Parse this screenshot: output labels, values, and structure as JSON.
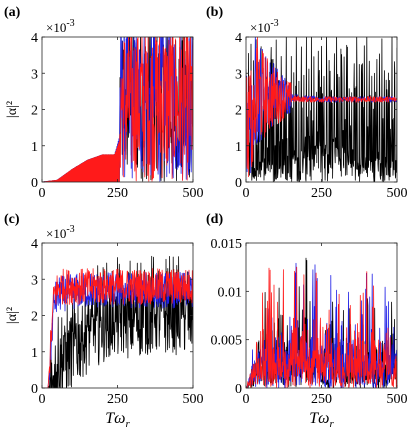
{
  "colors": {
    "black": "#000000",
    "blue": "#1f1fe6",
    "red": "#ff1a1a",
    "axis": "#262626"
  },
  "chart_data": [
    {
      "panel": "(a)",
      "type": "line",
      "xlim": [
        0,
        500
      ],
      "ylim": [
        0,
        4
      ],
      "exponent": "×10",
      "exponent_power": "-3",
      "xticks": [
        "0",
        "250",
        "500"
      ],
      "yticks": [
        "0",
        "1",
        "2",
        "3",
        "4"
      ],
      "ylabel": "|α|²",
      "xlabel": "",
      "series": [
        {
          "color": "black",
          "x": [
            0,
            50,
            100,
            150,
            200,
            240,
            255,
            265,
            280,
            300,
            350,
            400,
            450,
            500
          ],
          "y": [
            0.0,
            0.05,
            0.35,
            0.6,
            0.75,
            0.75,
            1.1,
            1.5,
            2.5,
            3.2,
            3.0,
            3.6,
            2.8,
            3.2
          ]
        },
        {
          "color": "blue",
          "x": [
            0,
            50,
            100,
            150,
            200,
            240,
            255,
            265,
            280,
            300,
            350,
            400,
            450,
            500
          ],
          "y": [
            0.0,
            0.05,
            0.35,
            0.6,
            0.75,
            0.75,
            1.2,
            1.8,
            3.4,
            3.6,
            3.2,
            3.8,
            3.0,
            3.4
          ]
        },
        {
          "color": "red",
          "x": [
            0,
            50,
            100,
            150,
            200,
            240,
            255,
            265,
            280,
            300,
            350,
            400,
            450,
            500
          ],
          "y": [
            0.0,
            0.05,
            0.35,
            0.6,
            0.75,
            0.75,
            1.1,
            1.6,
            3.0,
            3.4,
            3.0,
            3.5,
            2.8,
            3.2
          ]
        }
      ]
    },
    {
      "panel": "(b)",
      "type": "line",
      "xlim": [
        0,
        500
      ],
      "ylim": [
        0,
        4
      ],
      "exponent": "×10",
      "exponent_power": "-3",
      "xticks": [
        "0",
        "250",
        "500"
      ],
      "yticks": [
        "0",
        "1",
        "2",
        "3",
        "4"
      ],
      "ylabel": "",
      "xlabel": "",
      "series": [
        {
          "color": "black",
          "x": [
            0,
            25,
            50,
            100,
            150,
            200,
            250,
            280,
            300,
            350,
            400,
            450,
            500
          ],
          "y": [
            2.0,
            0.2,
            0.5,
            0.6,
            0.7,
            0.9,
            1.0,
            1.2,
            1.0,
            0.7,
            0.6,
            0.6,
            0.5
          ]
        },
        {
          "color": "blue",
          "x": [
            0,
            25,
            50,
            100,
            150,
            200,
            250,
            280,
            300,
            350,
            400,
            450,
            500
          ],
          "y": [
            2.6,
            2.5,
            2.5,
            2.45,
            2.35,
            2.3,
            2.28,
            2.28,
            2.28,
            2.28,
            2.28,
            2.28,
            2.28
          ]
        },
        {
          "color": "red",
          "x": [
            0,
            25,
            50,
            100,
            150,
            200,
            250,
            280,
            300,
            350,
            400,
            450,
            500
          ],
          "y": [
            2.5,
            2.5,
            2.4,
            2.35,
            2.3,
            2.28,
            2.28,
            2.28,
            2.28,
            2.28,
            2.28,
            2.28,
            2.28
          ]
        }
      ]
    },
    {
      "panel": "(c)",
      "type": "line",
      "xlim": [
        0,
        500
      ],
      "ylim": [
        0,
        4
      ],
      "exponent": "×10",
      "exponent_power": "-3",
      "xticks": [
        "0",
        "250",
        "500"
      ],
      "yticks": [
        "0",
        "1",
        "2",
        "3",
        "4"
      ],
      "ylabel": "|α|²",
      "xlabel": "Tω",
      "xlabel_sub": "r",
      "series": [
        {
          "color": "black",
          "x": [
            0,
            20,
            40,
            60,
            100,
            150,
            200,
            250,
            300,
            350,
            400,
            450,
            500
          ],
          "y": [
            0.0,
            0.0,
            0.3,
            0.6,
            1.0,
            1.4,
            1.7,
            1.8,
            1.8,
            1.9,
            1.9,
            1.9,
            1.9
          ]
        },
        {
          "color": "blue",
          "x": [
            0,
            20,
            40,
            60,
            100,
            150,
            200,
            250,
            300,
            350,
            400,
            450,
            500
          ],
          "y": [
            0.0,
            0.0,
            2.4,
            2.6,
            2.65,
            2.7,
            2.7,
            2.7,
            2.7,
            2.7,
            2.7,
            2.7,
            2.7
          ]
        },
        {
          "color": "red",
          "x": [
            0,
            20,
            40,
            60,
            100,
            150,
            200,
            250,
            300,
            350,
            400,
            450,
            500
          ],
          "y": [
            0.0,
            0.0,
            2.6,
            2.8,
            2.8,
            2.8,
            2.8,
            2.8,
            2.8,
            2.8,
            2.8,
            2.8,
            2.8
          ]
        }
      ]
    },
    {
      "panel": "(d)",
      "type": "line",
      "xlim": [
        0,
        500
      ],
      "ylim": [
        0,
        0.015
      ],
      "exponent": "",
      "exponent_power": "",
      "xticks": [
        "0",
        "250",
        "500"
      ],
      "yticks": [
        "0",
        "0.005",
        "0.01",
        "0.015"
      ],
      "ylabel": "",
      "xlabel": "Tω",
      "xlabel_sub": "r",
      "series": [
        {
          "color": "black",
          "x": [
            0,
            50,
            100,
            150,
            200,
            250,
            300,
            350,
            400,
            450,
            500
          ],
          "y": [
            0.0,
            0.0022,
            0.0028,
            0.0025,
            0.0035,
            0.0024,
            0.0022,
            0.002,
            0.0023,
            0.0021,
            0.002
          ]
        },
        {
          "color": "blue",
          "x": [
            0,
            50,
            100,
            150,
            200,
            250,
            300,
            350,
            400,
            450,
            500
          ],
          "y": [
            0.0,
            0.0025,
            0.003,
            0.0028,
            0.0032,
            0.0028,
            0.0026,
            0.0025,
            0.0028,
            0.0024,
            0.0025
          ]
        },
        {
          "color": "red",
          "x": [
            0,
            50,
            100,
            150,
            200,
            250,
            300,
            350,
            400,
            450,
            500
          ],
          "y": [
            0.0,
            0.0024,
            0.0032,
            0.0027,
            0.003,
            0.0026,
            0.0025,
            0.0024,
            0.0027,
            0.0023,
            0.0024
          ]
        }
      ]
    }
  ]
}
